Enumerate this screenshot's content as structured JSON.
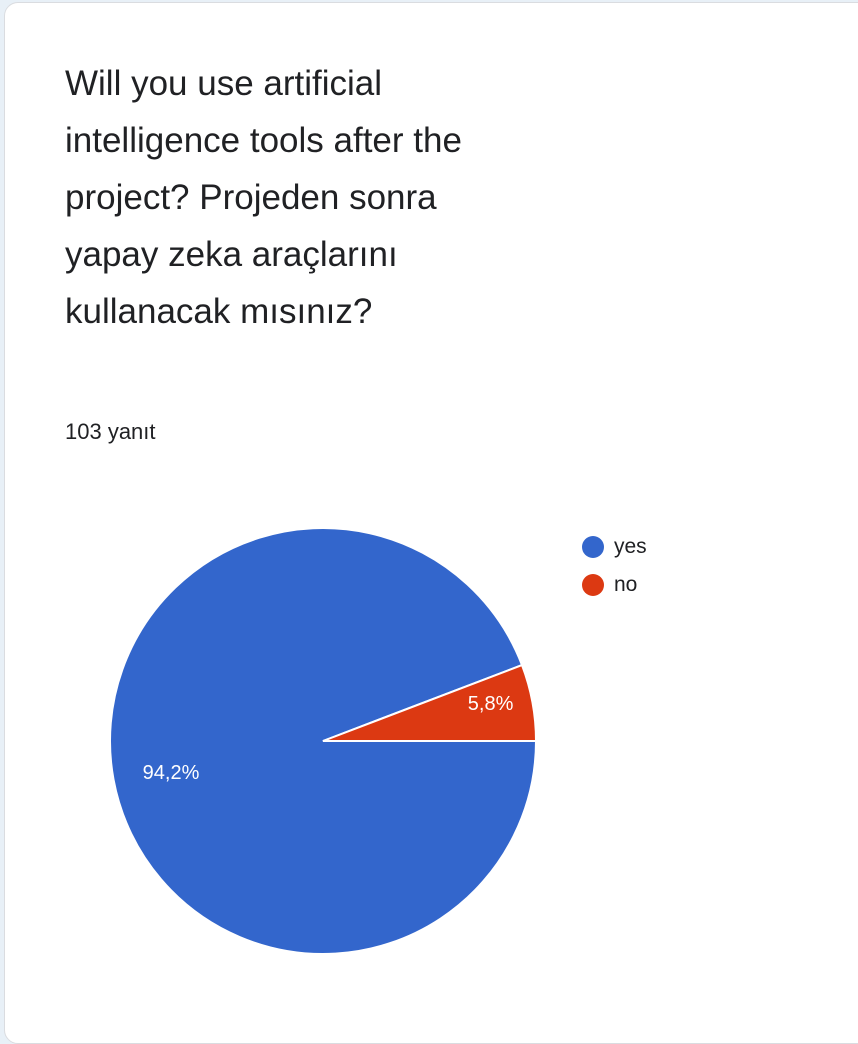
{
  "question": {
    "title": "Will you use artificial intelligence tools after the project? Projeden sonra yapay zeka araçlarını kullanacak mısınız?",
    "responses": "103 yanıt"
  },
  "chart_data": {
    "type": "pie",
    "categories": [
      "yes",
      "no"
    ],
    "values": [
      94.2,
      5.8
    ],
    "labels": [
      "94,2%",
      "5,8%"
    ],
    "colors": [
      "#3366cc",
      "#dc3912"
    ],
    "legend_position": "right"
  }
}
